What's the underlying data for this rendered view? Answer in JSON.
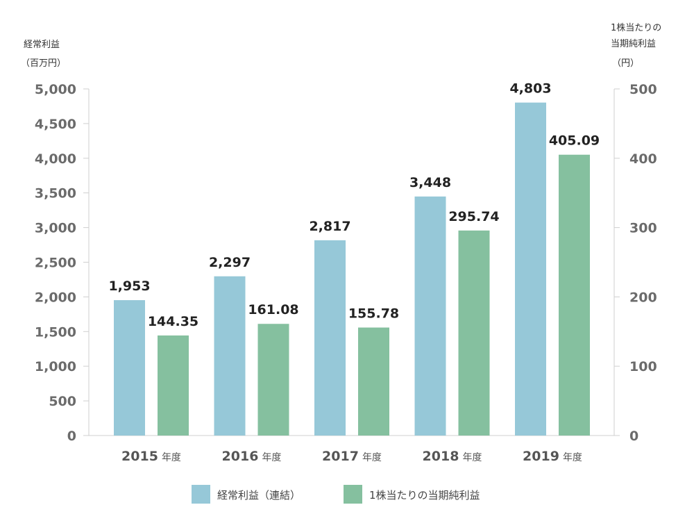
{
  "chart_data": {
    "type": "bar",
    "categories": [
      "2015",
      "2016",
      "2017",
      "2018",
      "2019"
    ],
    "category_suffix": "年度",
    "series": [
      {
        "name": "経常利益（連結）",
        "axis": "left",
        "color": "#96c8d8",
        "values": [
          1953,
          2297,
          2817,
          3448,
          4803
        ],
        "labels": [
          "1,953",
          "2,297",
          "2,817",
          "3,448",
          "4,803"
        ]
      },
      {
        "name": "1株当たりの当期純利益",
        "axis": "right",
        "color": "#85c09f",
        "values": [
          144.35,
          161.08,
          155.78,
          295.74,
          405.09
        ],
        "labels": [
          "144.35",
          "161.08",
          "155.78",
          "295.74",
          "405.09"
        ]
      }
    ],
    "y_left": {
      "title_lines": [
        "経常利益",
        "（百万円）"
      ],
      "ylim": [
        0,
        5000
      ],
      "ticks": [
        "0",
        "500",
        "1,000",
        "1,500",
        "2,000",
        "2,500",
        "3,000",
        "3,500",
        "4,000",
        "4,500",
        "5,000"
      ]
    },
    "y_right": {
      "title_lines": [
        "1株当たりの",
        "当期純利益",
        "（円）"
      ],
      "ylim": [
        0,
        500
      ],
      "ticks": [
        "0",
        "100",
        "200",
        "300",
        "400",
        "500"
      ]
    },
    "grid": false,
    "legend_position": "bottom-center"
  }
}
